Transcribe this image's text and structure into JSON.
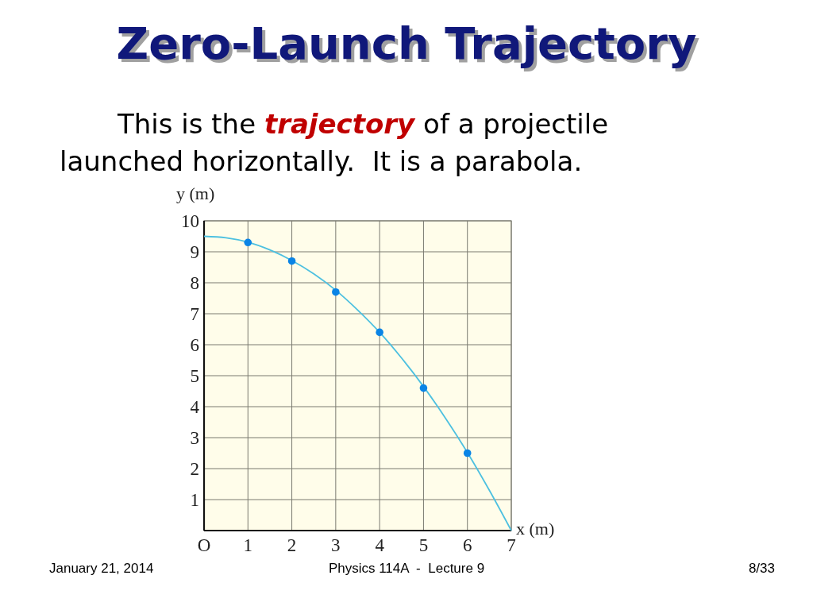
{
  "chart_data": {
    "type": "scatter",
    "title": "Zero-Launch Trajectory",
    "subtitle": "This is the trajectory of a projectile launched horizontally.  It is a parabola.",
    "xlabel": "x (m)",
    "ylabel": "y (m)",
    "xlim": [
      0,
      7
    ],
    "ylim": [
      0,
      10
    ],
    "xticks": [
      {
        "value": 0,
        "label": "O"
      },
      1,
      2,
      3,
      4,
      5,
      6,
      7
    ],
    "yticks": [
      1,
      2,
      3,
      4,
      5,
      6,
      7,
      8,
      9,
      10
    ],
    "grid": true,
    "series": [
      {
        "type": "line",
        "color": "#4dc0e0",
        "marker": "none",
        "x": [
          0,
          0.5,
          1,
          1.5,
          2,
          2.5,
          3,
          3.5,
          4,
          4.5,
          5,
          5.5,
          6,
          6.5,
          7
        ],
        "values": [
          9.5,
          9.45,
          9.31,
          9.06,
          8.72,
          8.29,
          7.76,
          7.12,
          6.4,
          5.57,
          4.65,
          3.63,
          2.52,
          1.3,
          0
        ]
      },
      {
        "color": "#0a84e6",
        "marker": "circle",
        "x": [
          1,
          2,
          3,
          4,
          5,
          6
        ],
        "values": [
          9.3,
          8.7,
          7.7,
          6.4,
          4.6,
          2.5
        ]
      }
    ],
    "annotations": [
      "January 21, 2014",
      "Physics 114A  -  Lecture 9",
      "8/33"
    ]
  }
}
